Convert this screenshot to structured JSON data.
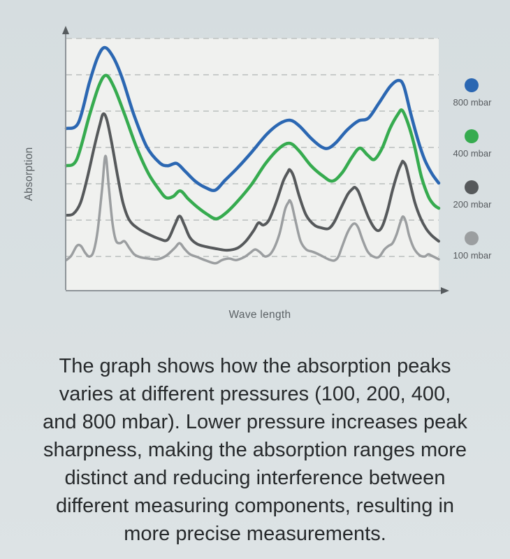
{
  "chart": {
    "plot_bg": "#f0f1ef",
    "axis_color": "#8d9398",
    "arrow_color": "#565b5e",
    "grid_color": "#c7cbca"
  },
  "chart_data": {
    "type": "line",
    "title": "",
    "xlabel": "Wave length",
    "ylabel": "Absorption",
    "axes_note": "no numeric tick labels shown; x and y in normalized 0-1 units (y: 0 = baseline axis, 1 = top gridline)",
    "grid": "horizontal-dashed",
    "gridlines": 7,
    "legend_position": "right",
    "series": [
      {
        "name": "800 mbar",
        "color": "#2b67b2",
        "stroke_width": 4.5,
        "points": [
          [
            0.0,
            0.642
          ],
          [
            0.032,
            0.664
          ],
          [
            0.062,
            0.825
          ],
          [
            0.084,
            0.925
          ],
          [
            0.103,
            0.964
          ],
          [
            0.126,
            0.925
          ],
          [
            0.15,
            0.842
          ],
          [
            0.182,
            0.694
          ],
          [
            0.216,
            0.569
          ],
          [
            0.25,
            0.506
          ],
          [
            0.272,
            0.494
          ],
          [
            0.296,
            0.503
          ],
          [
            0.319,
            0.472
          ],
          [
            0.347,
            0.431
          ],
          [
            0.375,
            0.406
          ],
          [
            0.4,
            0.397
          ],
          [
            0.426,
            0.436
          ],
          [
            0.46,
            0.486
          ],
          [
            0.497,
            0.547
          ],
          [
            0.538,
            0.619
          ],
          [
            0.572,
            0.661
          ],
          [
            0.6,
            0.675
          ],
          [
            0.625,
            0.653
          ],
          [
            0.657,
            0.603
          ],
          [
            0.685,
            0.569
          ],
          [
            0.704,
            0.564
          ],
          [
            0.726,
            0.589
          ],
          [
            0.754,
            0.636
          ],
          [
            0.784,
            0.672
          ],
          [
            0.811,
            0.683
          ],
          [
            0.839,
            0.742
          ],
          [
            0.869,
            0.808
          ],
          [
            0.891,
            0.833
          ],
          [
            0.906,
            0.811
          ],
          [
            0.925,
            0.7
          ],
          [
            0.944,
            0.597
          ],
          [
            0.962,
            0.519
          ],
          [
            0.981,
            0.464
          ],
          [
            1.0,
            0.425
          ]
        ]
      },
      {
        "name": "400 mbar",
        "color": "#36ab4f",
        "stroke_width": 4.5,
        "points": [
          [
            0.0,
            0.494
          ],
          [
            0.028,
            0.519
          ],
          [
            0.062,
            0.694
          ],
          [
            0.088,
            0.814
          ],
          [
            0.107,
            0.853
          ],
          [
            0.128,
            0.806
          ],
          [
            0.156,
            0.7
          ],
          [
            0.188,
            0.569
          ],
          [
            0.22,
            0.464
          ],
          [
            0.25,
            0.397
          ],
          [
            0.268,
            0.367
          ],
          [
            0.287,
            0.372
          ],
          [
            0.306,
            0.394
          ],
          [
            0.328,
            0.361
          ],
          [
            0.353,
            0.328
          ],
          [
            0.379,
            0.3
          ],
          [
            0.403,
            0.283
          ],
          [
            0.43,
            0.308
          ],
          [
            0.46,
            0.353
          ],
          [
            0.497,
            0.419
          ],
          [
            0.535,
            0.503
          ],
          [
            0.572,
            0.564
          ],
          [
            0.6,
            0.583
          ],
          [
            0.625,
            0.553
          ],
          [
            0.657,
            0.494
          ],
          [
            0.689,
            0.453
          ],
          [
            0.715,
            0.433
          ],
          [
            0.741,
            0.467
          ],
          [
            0.767,
            0.528
          ],
          [
            0.788,
            0.564
          ],
          [
            0.809,
            0.536
          ],
          [
            0.827,
            0.519
          ],
          [
            0.848,
            0.564
          ],
          [
            0.869,
            0.642
          ],
          [
            0.891,
            0.7
          ],
          [
            0.902,
            0.714
          ],
          [
            0.917,
            0.664
          ],
          [
            0.934,
            0.578
          ],
          [
            0.953,
            0.453
          ],
          [
            0.972,
            0.372
          ],
          [
            0.987,
            0.339
          ],
          [
            1.0,
            0.325
          ]
        ]
      },
      {
        "name": "200 mbar",
        "color": "#56595b",
        "stroke_width": 4,
        "points": [
          [
            0.0,
            0.297
          ],
          [
            0.019,
            0.303
          ],
          [
            0.038,
            0.347
          ],
          [
            0.056,
            0.444
          ],
          [
            0.075,
            0.569
          ],
          [
            0.09,
            0.658
          ],
          [
            0.099,
            0.7
          ],
          [
            0.109,
            0.675
          ],
          [
            0.122,
            0.583
          ],
          [
            0.137,
            0.458
          ],
          [
            0.152,
            0.347
          ],
          [
            0.169,
            0.278
          ],
          [
            0.193,
            0.244
          ],
          [
            0.22,
            0.222
          ],
          [
            0.25,
            0.203
          ],
          [
            0.272,
            0.2
          ],
          [
            0.291,
            0.258
          ],
          [
            0.304,
            0.294
          ],
          [
            0.317,
            0.258
          ],
          [
            0.332,
            0.208
          ],
          [
            0.351,
            0.183
          ],
          [
            0.375,
            0.172
          ],
          [
            0.403,
            0.164
          ],
          [
            0.432,
            0.158
          ],
          [
            0.46,
            0.167
          ],
          [
            0.482,
            0.194
          ],
          [
            0.503,
            0.236
          ],
          [
            0.516,
            0.267
          ],
          [
            0.529,
            0.258
          ],
          [
            0.544,
            0.278
          ],
          [
            0.563,
            0.347
          ],
          [
            0.582,
            0.431
          ],
          [
            0.595,
            0.469
          ],
          [
            0.6,
            0.478
          ],
          [
            0.61,
            0.453
          ],
          [
            0.625,
            0.375
          ],
          [
            0.644,
            0.297
          ],
          [
            0.666,
            0.258
          ],
          [
            0.685,
            0.247
          ],
          [
            0.704,
            0.244
          ],
          [
            0.719,
            0.269
          ],
          [
            0.737,
            0.325
          ],
          [
            0.756,
            0.381
          ],
          [
            0.769,
            0.403
          ],
          [
            0.775,
            0.408
          ],
          [
            0.784,
            0.392
          ],
          [
            0.797,
            0.342
          ],
          [
            0.812,
            0.286
          ],
          [
            0.827,
            0.247
          ],
          [
            0.839,
            0.236
          ],
          [
            0.85,
            0.258
          ],
          [
            0.863,
            0.319
          ],
          [
            0.876,
            0.397
          ],
          [
            0.891,
            0.472
          ],
          [
            0.901,
            0.506
          ],
          [
            0.904,
            0.511
          ],
          [
            0.912,
            0.492
          ],
          [
            0.923,
            0.425
          ],
          [
            0.936,
            0.347
          ],
          [
            0.951,
            0.286
          ],
          [
            0.966,
            0.244
          ],
          [
            0.981,
            0.217
          ],
          [
            1.0,
            0.194
          ]
        ]
      },
      {
        "name": "100 mbar",
        "color": "#9b9ea0",
        "stroke_width": 3.5,
        "points": [
          [
            0.0,
            0.119
          ],
          [
            0.013,
            0.136
          ],
          [
            0.028,
            0.175
          ],
          [
            0.039,
            0.175
          ],
          [
            0.051,
            0.147
          ],
          [
            0.062,
            0.133
          ],
          [
            0.073,
            0.153
          ],
          [
            0.084,
            0.236
          ],
          [
            0.096,
            0.403
          ],
          [
            0.105,
            0.533
          ],
          [
            0.114,
            0.408
          ],
          [
            0.124,
            0.264
          ],
          [
            0.133,
            0.197
          ],
          [
            0.144,
            0.186
          ],
          [
            0.156,
            0.194
          ],
          [
            0.169,
            0.167
          ],
          [
            0.182,
            0.142
          ],
          [
            0.197,
            0.131
          ],
          [
            0.22,
            0.125
          ],
          [
            0.244,
            0.122
          ],
          [
            0.268,
            0.136
          ],
          [
            0.291,
            0.167
          ],
          [
            0.304,
            0.186
          ],
          [
            0.317,
            0.164
          ],
          [
            0.332,
            0.142
          ],
          [
            0.351,
            0.131
          ],
          [
            0.375,
            0.117
          ],
          [
            0.4,
            0.106
          ],
          [
            0.418,
            0.119
          ],
          [
            0.437,
            0.125
          ],
          [
            0.456,
            0.119
          ],
          [
            0.478,
            0.131
          ],
          [
            0.493,
            0.147
          ],
          [
            0.507,
            0.161
          ],
          [
            0.52,
            0.15
          ],
          [
            0.535,
            0.133
          ],
          [
            0.553,
            0.153
          ],
          [
            0.572,
            0.222
          ],
          [
            0.587,
            0.319
          ],
          [
            0.597,
            0.35
          ],
          [
            0.6,
            0.356
          ],
          [
            0.606,
            0.336
          ],
          [
            0.617,
            0.264
          ],
          [
            0.629,
            0.194
          ],
          [
            0.644,
            0.161
          ],
          [
            0.659,
            0.153
          ],
          [
            0.67,
            0.147
          ],
          [
            0.685,
            0.136
          ],
          [
            0.704,
            0.122
          ],
          [
            0.719,
            0.117
          ],
          [
            0.73,
            0.131
          ],
          [
            0.741,
            0.175
          ],
          [
            0.754,
            0.225
          ],
          [
            0.766,
            0.256
          ],
          [
            0.775,
            0.264
          ],
          [
            0.784,
            0.247
          ],
          [
            0.796,
            0.197
          ],
          [
            0.809,
            0.153
          ],
          [
            0.824,
            0.133
          ],
          [
            0.839,
            0.131
          ],
          [
            0.854,
            0.161
          ],
          [
            0.865,
            0.175
          ],
          [
            0.876,
            0.186
          ],
          [
            0.887,
            0.222
          ],
          [
            0.897,
            0.269
          ],
          [
            0.904,
            0.292
          ],
          [
            0.912,
            0.269
          ],
          [
            0.921,
            0.214
          ],
          [
            0.933,
            0.167
          ],
          [
            0.948,
            0.139
          ],
          [
            0.962,
            0.133
          ],
          [
            0.972,
            0.142
          ],
          [
            0.981,
            0.136
          ],
          [
            1.0,
            0.122
          ]
        ]
      }
    ]
  },
  "caption": {
    "lines": [
      "The graph shows how the absorption peaks",
      "varies at different pressures (100, 200, 400,",
      "and 800 mbar). Lower pressure increases peak",
      "sharpness, making the absorption ranges more",
      "distinct and reducing interference between",
      "different measuring components, resulting in",
      "more precise measurements."
    ]
  }
}
